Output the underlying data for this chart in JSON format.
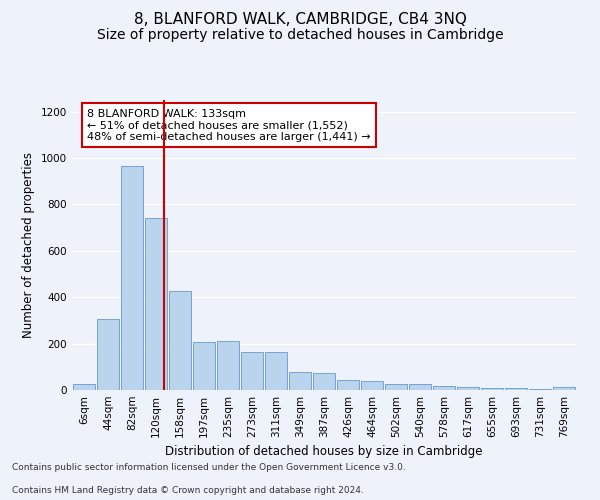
{
  "title": "8, BLANFORD WALK, CAMBRIDGE, CB4 3NQ",
  "subtitle": "Size of property relative to detached houses in Cambridge",
  "xlabel": "Distribution of detached houses by size in Cambridge",
  "ylabel": "Number of detached properties",
  "annotation_line1": "8 BLANFORD WALK: 133sqm",
  "annotation_line2": "← 51% of detached houses are smaller (1,552)",
  "annotation_line3": "48% of semi-detached houses are larger (1,441) →",
  "footer_line1": "Contains HM Land Registry data © Crown copyright and database right 2024.",
  "footer_line2": "Contains public sector information licensed under the Open Government Licence v3.0.",
  "bin_labels": [
    "6sqm",
    "44sqm",
    "82sqm",
    "120sqm",
    "158sqm",
    "197sqm",
    "235sqm",
    "273sqm",
    "311sqm",
    "349sqm",
    "387sqm",
    "426sqm",
    "464sqm",
    "502sqm",
    "540sqm",
    "578sqm",
    "617sqm",
    "655sqm",
    "693sqm",
    "731sqm",
    "769sqm"
  ],
  "bar_values": [
    25,
    305,
    965,
    740,
    425,
    205,
    210,
    165,
    165,
    78,
    75,
    42,
    38,
    28,
    25,
    18,
    15,
    10,
    8,
    5,
    12
  ],
  "bar_color": "#bad4ed",
  "bar_edge_color": "#6699cc",
  "bar_width": 0.95,
  "vline_color": "#cc0000",
  "annotation_box_color": "#cc0000",
  "ylim": [
    0,
    1250
  ],
  "yticks": [
    0,
    200,
    400,
    600,
    800,
    1000,
    1200
  ],
  "background_color": "#eef2fb",
  "plot_background": "#eef2fb",
  "grid_color": "#ffffff",
  "title_fontsize": 11,
  "subtitle_fontsize": 10,
  "axis_label_fontsize": 8.5,
  "tick_fontsize": 7.5,
  "annotation_fontsize": 8,
  "footer_fontsize": 6.5
}
